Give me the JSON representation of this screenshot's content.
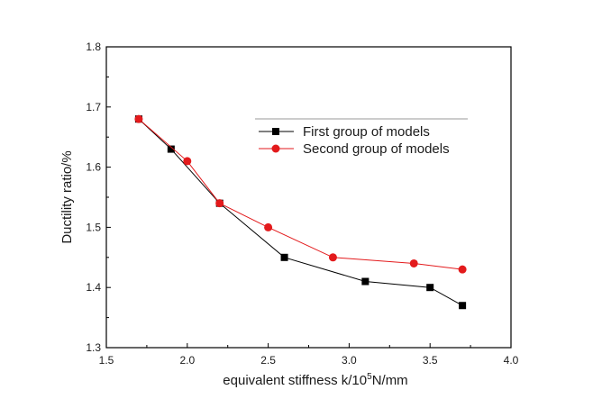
{
  "chart_data": {
    "type": "line",
    "title": "",
    "xlabel": "equivalent stiffness k/10",
    "xlabel_sup": "5",
    "xlabel_unit": "N/mm",
    "ylabel": "Ductility ratio/%",
    "xlim": [
      1.5,
      4.0
    ],
    "ylim": [
      1.3,
      1.8
    ],
    "xticks": [
      "1.5",
      "2.0",
      "2.5",
      "3.0",
      "3.5",
      "4.0"
    ],
    "yticks": [
      "1.3",
      "1.4",
      "1.5",
      "1.6",
      "1.7",
      "1.8"
    ],
    "grid": false,
    "legend_position": "upper-right",
    "series": [
      {
        "name": "First group of models",
        "color": "#000000",
        "marker": "square",
        "x": [
          1.7,
          1.9,
          2.2,
          2.6,
          3.1,
          3.5,
          3.7
        ],
        "y": [
          1.68,
          1.63,
          1.54,
          1.45,
          1.41,
          1.4,
          1.37
        ]
      },
      {
        "name": "Second group of models",
        "color": "#e31a1c",
        "marker": "circle",
        "x": [
          1.7,
          2.0,
          2.2,
          2.5,
          2.9,
          3.4,
          3.7
        ],
        "y": [
          1.68,
          1.61,
          1.54,
          1.5,
          1.45,
          1.44,
          1.43
        ]
      }
    ]
  }
}
